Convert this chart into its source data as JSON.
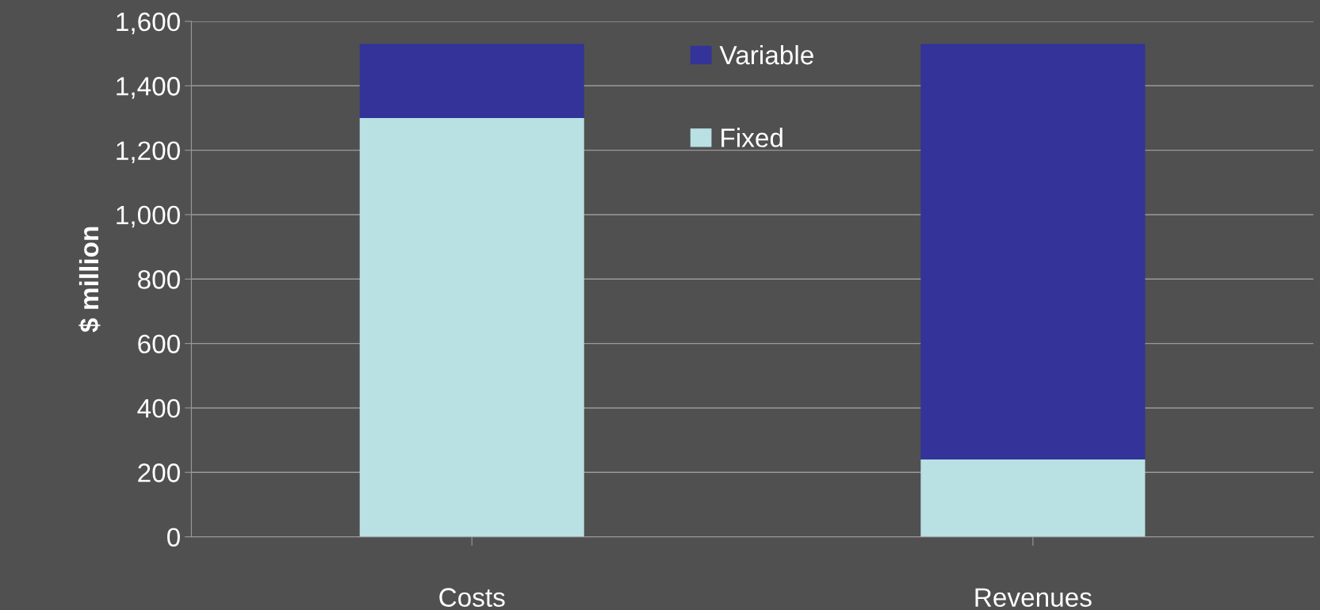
{
  "chart_data": {
    "type": "bar",
    "stacked": true,
    "ylabel": "$ million",
    "categories": [
      "Costs",
      "Revenues"
    ],
    "series": [
      {
        "name": "Fixed",
        "color": "#b9e0e2",
        "values": [
          1300,
          240
        ]
      },
      {
        "name": "Variable",
        "color": "#333399",
        "values": [
          230,
          1290
        ]
      }
    ],
    "ylim": [
      0,
      1600
    ],
    "yticks": [
      {
        "value": 0,
        "label": "0"
      },
      {
        "value": 200,
        "label": "200"
      },
      {
        "value": 400,
        "label": "400"
      },
      {
        "value": 600,
        "label": "600"
      },
      {
        "value": 800,
        "label": "800"
      },
      {
        "value": 1000,
        "label": "1,000"
      },
      {
        "value": 1200,
        "label": "1,200"
      },
      {
        "value": 1400,
        "label": "1,400"
      },
      {
        "value": 1600,
        "label": "1,600"
      }
    ],
    "grid": "y",
    "legend": "top"
  }
}
